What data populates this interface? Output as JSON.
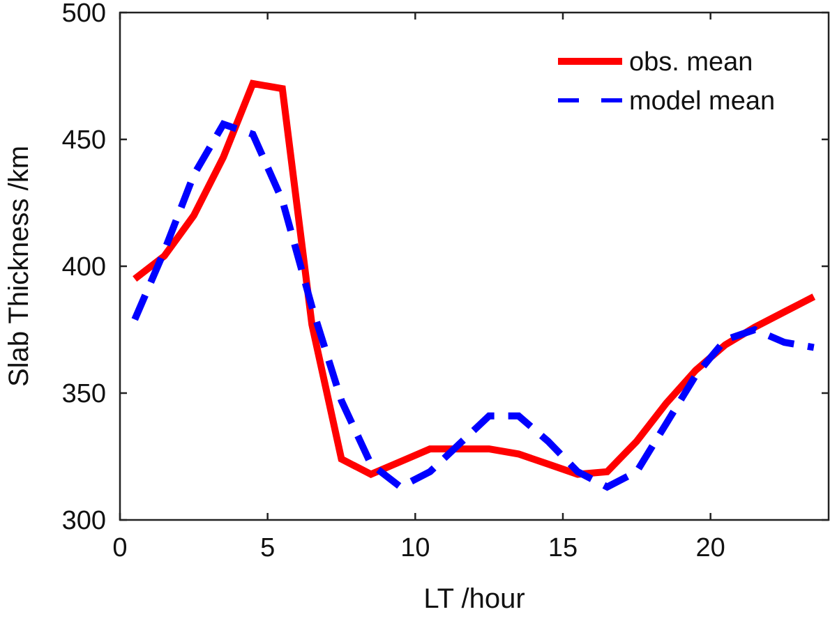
{
  "chart_data": {
    "type": "line",
    "title": "",
    "xlabel": "LT /hour",
    "ylabel": "Slab Thickness /km",
    "xlim": [
      0,
      24
    ],
    "ylim": [
      300,
      500
    ],
    "xticks": [
      0,
      5,
      10,
      15,
      20
    ],
    "yticks": [
      300,
      350,
      400,
      450,
      500
    ],
    "grid": false,
    "legend_position": "top-right",
    "series": [
      {
        "name": "obs. mean",
        "color": "#ff0000",
        "style": "solid",
        "x": [
          0.5,
          1.5,
          2.5,
          3.5,
          4.5,
          5.5,
          6.5,
          7.5,
          8.5,
          9.5,
          10.5,
          11.5,
          12.5,
          13.5,
          14.5,
          15.5,
          16.5,
          17.5,
          18.5,
          19.5,
          20.5,
          21.5,
          22.5,
          23.5
        ],
        "y": [
          395,
          404,
          420,
          443,
          472,
          470,
          377,
          324,
          318,
          323,
          328,
          328,
          328,
          326,
          322,
          318,
          319,
          331,
          346,
          359,
          369,
          376,
          382,
          388
        ]
      },
      {
        "name": "model mean",
        "color": "#0000ff",
        "style": "dashed",
        "x": [
          0.5,
          1.5,
          2.5,
          3.5,
          4.5,
          5.5,
          6.5,
          7.5,
          8.5,
          9.5,
          10.5,
          11.5,
          12.5,
          13.5,
          14.5,
          15.5,
          16.5,
          17.5,
          18.5,
          19.5,
          20.5,
          21.5,
          22.5,
          23.5
        ],
        "y": [
          379,
          406,
          436,
          456,
          452,
          426,
          384,
          347,
          322,
          313,
          319,
          330,
          341,
          341,
          331,
          319,
          313,
          319,
          338,
          357,
          371,
          375,
          370,
          368
        ]
      }
    ]
  }
}
